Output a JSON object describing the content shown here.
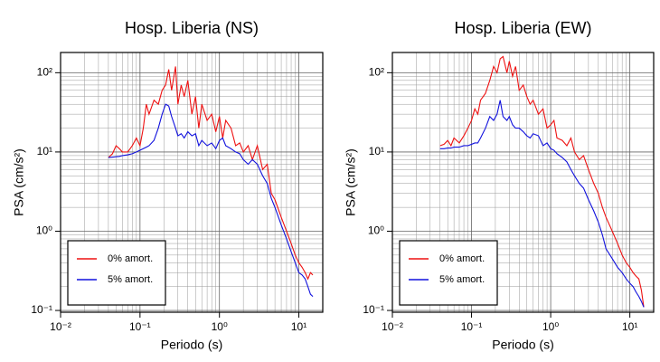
{
  "chart_data": [
    {
      "type": "line",
      "title": "Hosp. Liberia (NS)",
      "xlabel": "Periodo (s)",
      "ylabel": "PSA (cm/s²)",
      "log_x": true,
      "log_y": true,
      "grid": true,
      "legend": "lower left",
      "xlim": [
        0.01,
        20
      ],
      "ylim": [
        0.095,
        180
      ],
      "xticks": [
        {
          "value": 0.01,
          "label": "10⁻²"
        },
        {
          "value": 0.1,
          "label": "10⁻¹"
        },
        {
          "value": 1,
          "label": "10⁰"
        },
        {
          "value": 10,
          "label": "10¹"
        }
      ],
      "yticks": [
        {
          "value": 0.1,
          "label": "10⁻¹"
        },
        {
          "value": 1,
          "label": "10⁰"
        },
        {
          "value": 10,
          "label": "10¹"
        },
        {
          "value": 100,
          "label": "10²"
        }
      ],
      "x": [
        0.04,
        0.045,
        0.05,
        0.055,
        0.06,
        0.07,
        0.08,
        0.09,
        0.1,
        0.11,
        0.12,
        0.13,
        0.15,
        0.17,
        0.19,
        0.21,
        0.23,
        0.25,
        0.28,
        0.3,
        0.33,
        0.36,
        0.4,
        0.45,
        0.5,
        0.55,
        0.6,
        0.7,
        0.8,
        0.9,
        1,
        1.1,
        1.2,
        1.4,
        1.6,
        1.8,
        2,
        2.3,
        2.6,
        3,
        3.5,
        4,
        4.5,
        5,
        6,
        7,
        8,
        9,
        10,
        11,
        12,
        13,
        14,
        15
      ],
      "series": [
        {
          "name": "0% amort.",
          "color": "#ee1111",
          "values": [
            8.5,
            9.5,
            12,
            11,
            10,
            10,
            12,
            15,
            12,
            20,
            40,
            30,
            45,
            40,
            60,
            70,
            110,
            60,
            120,
            40,
            70,
            50,
            80,
            30,
            50,
            20,
            40,
            25,
            30,
            18,
            28,
            15,
            25,
            20,
            12,
            13,
            10,
            12,
            8,
            12,
            6,
            7,
            3,
            2.5,
            1.5,
            1,
            0.7,
            0.5,
            0.4,
            0.35,
            0.3,
            0.25,
            0.3,
            0.28
          ]
        },
        {
          "name": "5% amort.",
          "color": "#1111dd",
          "values": [
            8.5,
            8.6,
            8.7,
            8.8,
            9,
            9.2,
            9.5,
            10,
            10.5,
            11,
            11.5,
            12,
            14,
            20,
            30,
            40,
            38,
            28,
            20,
            16,
            17,
            15,
            18,
            16,
            17,
            12,
            14,
            12,
            13,
            11,
            14,
            15,
            12,
            11,
            10,
            9.5,
            8,
            7,
            8,
            7,
            5,
            4,
            2.6,
            2,
            1.2,
            0.8,
            0.55,
            0.4,
            0.3,
            0.28,
            0.25,
            0.2,
            0.16,
            0.15
          ]
        }
      ]
    },
    {
      "type": "line",
      "title": "Hosp. Liberia (EW)",
      "xlabel": "Periodo (s)",
      "ylabel": "PSA (cm/s²)",
      "log_x": true,
      "log_y": true,
      "grid": true,
      "legend": "lower left",
      "xlim": [
        0.01,
        20
      ],
      "ylim": [
        0.095,
        180
      ],
      "xticks": [
        {
          "value": 0.01,
          "label": "10⁻²"
        },
        {
          "value": 0.1,
          "label": "10⁻¹"
        },
        {
          "value": 1,
          "label": "10⁰"
        },
        {
          "value": 10,
          "label": "10¹"
        }
      ],
      "yticks": [
        {
          "value": 0.1,
          "label": "10⁻¹"
        },
        {
          "value": 1,
          "label": "10⁰"
        },
        {
          "value": 10,
          "label": "10¹"
        },
        {
          "value": 100,
          "label": "10²"
        }
      ],
      "x": [
        0.04,
        0.045,
        0.05,
        0.055,
        0.06,
        0.07,
        0.08,
        0.09,
        0.1,
        0.11,
        0.12,
        0.13,
        0.15,
        0.17,
        0.19,
        0.21,
        0.23,
        0.25,
        0.28,
        0.3,
        0.33,
        0.36,
        0.4,
        0.45,
        0.5,
        0.55,
        0.6,
        0.7,
        0.8,
        0.9,
        1,
        1.1,
        1.2,
        1.4,
        1.6,
        1.8,
        2,
        2.3,
        2.6,
        3,
        3.5,
        4,
        4.5,
        5,
        6,
        7,
        8,
        9,
        10,
        11,
        12,
        13,
        14,
        15
      ],
      "series": [
        {
          "name": "0% amort.",
          "color": "#ee1111",
          "values": [
            12,
            12.5,
            14,
            12,
            15,
            13,
            16,
            20,
            25,
            35,
            30,
            45,
            55,
            80,
            120,
            100,
            150,
            160,
            100,
            140,
            90,
            120,
            60,
            70,
            50,
            40,
            45,
            30,
            35,
            20,
            22,
            25,
            15,
            14,
            12,
            15,
            10,
            8,
            9,
            6,
            4,
            3,
            2,
            1.5,
            1,
            0.7,
            0.5,
            0.4,
            0.35,
            0.3,
            0.27,
            0.25,
            0.18,
            0.11
          ]
        },
        {
          "name": "5% amort.",
          "color": "#1111dd",
          "values": [
            11,
            11,
            11.2,
            11.2,
            11.5,
            11.5,
            12,
            12,
            12.5,
            13,
            13,
            15,
            20,
            28,
            25,
            30,
            45,
            28,
            25,
            28,
            22,
            20,
            20,
            18,
            16,
            15,
            17,
            16,
            12,
            13,
            11,
            10.5,
            9.5,
            8.5,
            7.5,
            6,
            5,
            4,
            3.5,
            2.5,
            1.8,
            1.3,
            0.9,
            0.6,
            0.45,
            0.35,
            0.3,
            0.25,
            0.22,
            0.2,
            0.17,
            0.15,
            0.13,
            0.11
          ]
        }
      ]
    }
  ]
}
